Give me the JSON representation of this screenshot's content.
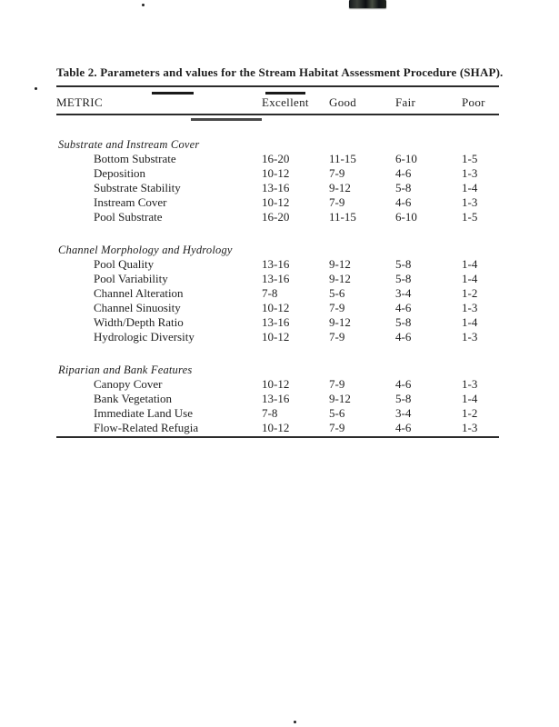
{
  "title": "Table 2.  Parameters and values for the Stream Habitat Assessment Procedure (SHAP).",
  "table": {
    "columns": [
      "METRIC",
      "Excellent",
      "Good",
      "Fair",
      "Poor"
    ],
    "sections": [
      {
        "header": "Substrate and Instream Cover",
        "rows": [
          {
            "metric": "Bottom Substrate",
            "values": [
              "16-20",
              "11-15",
              "6-10",
              "1-5"
            ]
          },
          {
            "metric": "Deposition",
            "values": [
              "10-12",
              "7-9",
              "4-6",
              "1-3"
            ]
          },
          {
            "metric": "Substrate Stability",
            "values": [
              "13-16",
              "9-12",
              "5-8",
              "1-4"
            ]
          },
          {
            "metric": "Instream Cover",
            "values": [
              "10-12",
              "7-9",
              "4-6",
              "1-3"
            ]
          },
          {
            "metric": "Pool Substrate",
            "values": [
              "16-20",
              "11-15",
              "6-10",
              "1-5"
            ]
          }
        ]
      },
      {
        "header": "Channel Morphology and Hydrology",
        "rows": [
          {
            "metric": "Pool Quality",
            "values": [
              "13-16",
              "9-12",
              "5-8",
              "1-4"
            ]
          },
          {
            "metric": "Pool Variability",
            "values": [
              "13-16",
              "9-12",
              "5-8",
              "1-4"
            ]
          },
          {
            "metric": "Channel Alteration",
            "values": [
              "7-8",
              "5-6",
              "3-4",
              "1-2"
            ]
          },
          {
            "metric": "Channel Sinuosity",
            "values": [
              "10-12",
              "7-9",
              "4-6",
              "1-3"
            ]
          },
          {
            "metric": "Width/Depth Ratio",
            "values": [
              "13-16",
              "9-12",
              "5-8",
              "1-4"
            ]
          },
          {
            "metric": "Hydrologic Diversity",
            "values": [
              "10-12",
              "7-9",
              "4-6",
              "1-3"
            ]
          }
        ]
      },
      {
        "header": "Riparian and Bank Features",
        "rows": [
          {
            "metric": "Canopy Cover",
            "values": [
              "10-12",
              "7-9",
              "4-6",
              "1-3"
            ]
          },
          {
            "metric": "Bank Vegetation",
            "values": [
              "13-16",
              "9-12",
              "5-8",
              "1-4"
            ]
          },
          {
            "metric": "Immediate Land Use",
            "values": [
              "7-8",
              "5-6",
              "3-4",
              "1-2"
            ]
          },
          {
            "metric": "Flow-Related Refugia",
            "values": [
              "10-12",
              "7-9",
              "4-6",
              "1-3"
            ]
          }
        ]
      }
    ]
  },
  "artifacts": {
    "smudge": "scanner-ink-smudge",
    "specks": [
      "top-center-dot",
      "left-margin-dot",
      "bottom-center-dot"
    ]
  }
}
